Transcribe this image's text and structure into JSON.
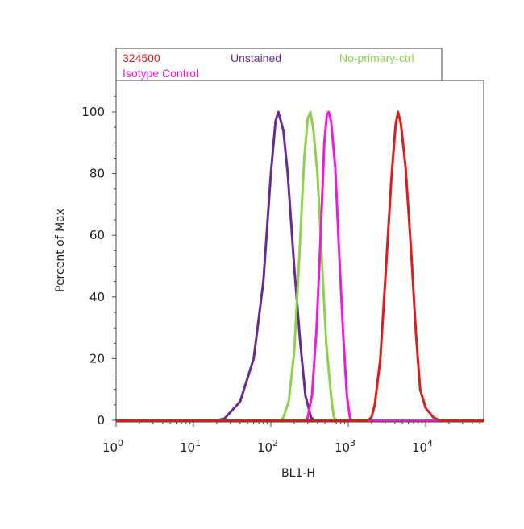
{
  "chart_data": {
    "type": "line",
    "xlabel": "BL1-H",
    "ylabel": "Percent of Max",
    "x_scale": "log",
    "xlim": [
      1,
      60000
    ],
    "ylim": [
      0,
      110
    ],
    "grid": false,
    "legend_position": "top",
    "x_ticks": [
      {
        "value": 1,
        "base": "10",
        "exp": "0"
      },
      {
        "value": 10,
        "base": "10",
        "exp": "1"
      },
      {
        "value": 100,
        "base": "10",
        "exp": "2"
      },
      {
        "value": 1000,
        "base": "10",
        "exp": "3"
      },
      {
        "value": 10000,
        "base": "10",
        "exp": "4"
      }
    ],
    "y_ticks": [
      0,
      20,
      40,
      60,
      80,
      100
    ],
    "series": [
      {
        "name": "Unstained",
        "color": "#6a2c91",
        "points": [
          [
            1,
            0
          ],
          [
            20,
            0
          ],
          [
            25,
            0.5
          ],
          [
            40,
            6
          ],
          [
            60,
            20
          ],
          [
            80,
            45
          ],
          [
            100,
            80
          ],
          [
            115,
            97
          ],
          [
            125,
            100
          ],
          [
            145,
            94
          ],
          [
            165,
            80
          ],
          [
            200,
            50
          ],
          [
            240,
            25
          ],
          [
            280,
            8
          ],
          [
            330,
            1
          ],
          [
            360,
            0
          ],
          [
            60000,
            0
          ]
        ]
      },
      {
        "name": "No-primary-ctrl",
        "color": "#8fd14f",
        "points": [
          [
            1,
            0
          ],
          [
            135,
            0
          ],
          [
            145,
            1
          ],
          [
            170,
            6
          ],
          [
            200,
            22
          ],
          [
            230,
            50
          ],
          [
            270,
            85
          ],
          [
            300,
            98
          ],
          [
            325,
            100
          ],
          [
            355,
            94
          ],
          [
            400,
            80
          ],
          [
            450,
            55
          ],
          [
            520,
            25
          ],
          [
            600,
            8
          ],
          [
            650,
            1
          ],
          [
            700,
            0
          ],
          [
            60000,
            0
          ]
        ]
      },
      {
        "name": "Isotype Control",
        "color": "#ee1bd8",
        "points": [
          [
            1,
            0
          ],
          [
            280,
            0
          ],
          [
            300,
            1
          ],
          [
            340,
            8
          ],
          [
            390,
            30
          ],
          [
            440,
            60
          ],
          [
            490,
            90
          ],
          [
            530,
            99
          ],
          [
            560,
            100
          ],
          [
            600,
            97
          ],
          [
            680,
            82
          ],
          [
            760,
            55
          ],
          [
            860,
            28
          ],
          [
            960,
            8
          ],
          [
            1050,
            1
          ],
          [
            1100,
            0
          ],
          [
            60000,
            0
          ]
        ]
      },
      {
        "name": "324500",
        "color": "#dd1c1c",
        "points": [
          [
            1,
            0
          ],
          [
            1800,
            0
          ],
          [
            2000,
            1
          ],
          [
            2200,
            5
          ],
          [
            2600,
            20
          ],
          [
            3000,
            45
          ],
          [
            3600,
            78
          ],
          [
            4100,
            96
          ],
          [
            4400,
            100
          ],
          [
            4800,
            96
          ],
          [
            5500,
            82
          ],
          [
            6500,
            55
          ],
          [
            7500,
            28
          ],
          [
            8500,
            10
          ],
          [
            10000,
            4
          ],
          [
            12500,
            1
          ],
          [
            15000,
            0
          ],
          [
            60000,
            0
          ]
        ]
      }
    ],
    "legend": [
      {
        "label": "324500",
        "color": "#dd1c1c"
      },
      {
        "label": "Unstained",
        "color": "#6a2c91"
      },
      {
        "label": "No-primary-ctrl",
        "color": "#8fd14f"
      },
      {
        "label": "Isotype Control",
        "color": "#ee1bd8"
      }
    ]
  }
}
